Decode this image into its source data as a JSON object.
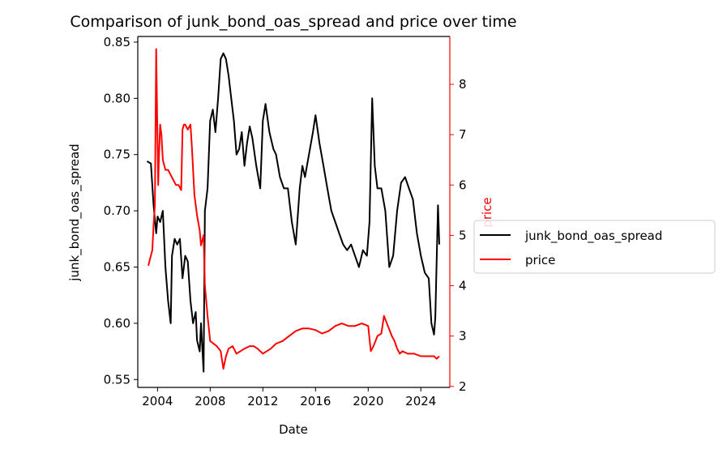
{
  "chart_data": {
    "type": "line",
    "title": "Comparison of junk_bond_oas_spread and price over time",
    "xlabel": "Date",
    "ylabel_left": "junk_bond_oas_spread",
    "ylabel_right": "price",
    "x_ticks": [
      "2004",
      "2008",
      "2012",
      "2016",
      "2020",
      "2024"
    ],
    "y_left_ticks": [
      "0.55",
      "0.60",
      "0.65",
      "0.70",
      "0.75",
      "0.80",
      "0.85"
    ],
    "y_right_ticks": [
      "2",
      "3",
      "4",
      "5",
      "6",
      "7",
      "8"
    ],
    "xlim": [
      2002.5,
      2026.2
    ],
    "ylim_left": [
      0.543,
      0.855
    ],
    "ylim_right": [
      1.98,
      8.95
    ],
    "grid": false,
    "legend_position": "center-right outside",
    "colors": {
      "left_axis": "#000000",
      "right_axis": "#ff0000"
    },
    "series": [
      {
        "name": "junk_bond_oas_spread",
        "axis": "left",
        "color": "#000000",
        "x": [
          2003.2,
          2003.5,
          2003.7,
          2003.9,
          2004.0,
          2004.2,
          2004.4,
          2004.6,
          2004.8,
          2005.0,
          2005.1,
          2005.3,
          2005.5,
          2005.7,
          2005.9,
          2006.1,
          2006.3,
          2006.5,
          2006.7,
          2006.9,
          2007.0,
          2007.2,
          2007.3,
          2007.5,
          2007.6,
          2007.8,
          2008.0,
          2008.2,
          2008.4,
          2008.6,
          2008.8,
          2009.0,
          2009.2,
          2009.4,
          2009.6,
          2009.8,
          2010.0,
          2010.2,
          2010.4,
          2010.6,
          2010.8,
          2011.0,
          2011.2,
          2011.5,
          2011.8,
          2012.0,
          2012.2,
          2012.5,
          2012.8,
          2013.0,
          2013.3,
          2013.6,
          2013.9,
          2014.2,
          2014.5,
          2014.8,
          2015.0,
          2015.2,
          2015.5,
          2015.8,
          2016.0,
          2016.3,
          2016.6,
          2016.9,
          2017.2,
          2017.5,
          2017.8,
          2018.1,
          2018.4,
          2018.7,
          2019.0,
          2019.3,
          2019.6,
          2019.9,
          2020.1,
          2020.3,
          2020.5,
          2020.7,
          2021.0,
          2021.3,
          2021.6,
          2021.9,
          2022.2,
          2022.5,
          2022.8,
          2023.1,
          2023.4,
          2023.7,
          2024.0,
          2024.3,
          2024.6,
          2024.8,
          2025.0,
          2025.1,
          2025.3,
          2025.4
        ],
        "y": [
          0.744,
          0.742,
          0.705,
          0.68,
          0.695,
          0.69,
          0.7,
          0.65,
          0.62,
          0.6,
          0.66,
          0.675,
          0.67,
          0.675,
          0.64,
          0.66,
          0.655,
          0.62,
          0.6,
          0.61,
          0.585,
          0.575,
          0.6,
          0.557,
          0.7,
          0.72,
          0.78,
          0.79,
          0.77,
          0.8,
          0.835,
          0.84,
          0.835,
          0.82,
          0.8,
          0.78,
          0.75,
          0.755,
          0.77,
          0.74,
          0.76,
          0.775,
          0.765,
          0.74,
          0.72,
          0.78,
          0.795,
          0.77,
          0.755,
          0.75,
          0.73,
          0.72,
          0.72,
          0.69,
          0.67,
          0.72,
          0.74,
          0.73,
          0.75,
          0.77,
          0.785,
          0.76,
          0.74,
          0.72,
          0.7,
          0.69,
          0.68,
          0.67,
          0.665,
          0.67,
          0.66,
          0.65,
          0.665,
          0.66,
          0.69,
          0.8,
          0.74,
          0.72,
          0.72,
          0.7,
          0.65,
          0.66,
          0.7,
          0.725,
          0.73,
          0.72,
          0.71,
          0.68,
          0.66,
          0.645,
          0.64,
          0.6,
          0.59,
          0.605,
          0.705,
          0.67
        ]
      },
      {
        "name": "price",
        "axis": "right",
        "color": "#ff0000",
        "x": [
          2003.3,
          2003.5,
          2003.6,
          2003.7,
          2003.8,
          2003.9,
          2004.0,
          2004.05,
          2004.1,
          2004.2,
          2004.3,
          2004.4,
          2004.5,
          2004.6,
          2004.8,
          2005.0,
          2005.2,
          2005.4,
          2005.6,
          2005.8,
          2005.9,
          2006.0,
          2006.1,
          2006.3,
          2006.5,
          2006.6,
          2006.8,
          2007.0,
          2007.2,
          2007.3,
          2007.5,
          2007.6,
          2007.8,
          2008.0,
          2008.5,
          2008.8,
          2009.0,
          2009.2,
          2009.4,
          2009.7,
          2010.0,
          2010.3,
          2010.6,
          2011.0,
          2011.3,
          2011.6,
          2012.0,
          2012.3,
          2012.6,
          2013.0,
          2013.5,
          2014.0,
          2014.5,
          2015.0,
          2015.5,
          2016.0,
          2016.5,
          2017.0,
          2017.5,
          2018.0,
          2018.5,
          2019.0,
          2019.5,
          2020.0,
          2020.2,
          2020.4,
          2020.7,
          2021.0,
          2021.2,
          2021.5,
          2021.8,
          2022.0,
          2022.2,
          2022.4,
          2022.6,
          2023.0,
          2023.5,
          2024.0,
          2024.5,
          2025.0,
          2025.2,
          2025.4
        ],
        "y": [
          4.4,
          4.6,
          4.7,
          5.2,
          5.6,
          8.7,
          6.8,
          6.0,
          6.5,
          7.2,
          7.0,
          6.5,
          6.4,
          6.3,
          6.3,
          6.2,
          6.1,
          6.0,
          6.0,
          5.9,
          7.1,
          7.2,
          7.2,
          7.1,
          7.2,
          6.8,
          5.8,
          5.4,
          5.1,
          4.8,
          5.0,
          4.0,
          3.4,
          2.9,
          2.8,
          2.7,
          2.35,
          2.6,
          2.75,
          2.8,
          2.65,
          2.7,
          2.75,
          2.8,
          2.8,
          2.75,
          2.65,
          2.7,
          2.75,
          2.85,
          2.9,
          3.0,
          3.1,
          3.15,
          3.15,
          3.12,
          3.05,
          3.1,
          3.2,
          3.25,
          3.2,
          3.2,
          3.25,
          3.2,
          2.7,
          2.8,
          3.0,
          3.05,
          3.4,
          3.2,
          3.0,
          2.9,
          2.75,
          2.65,
          2.7,
          2.65,
          2.65,
          2.6,
          2.6,
          2.6,
          2.55,
          2.6
        ]
      }
    ]
  }
}
